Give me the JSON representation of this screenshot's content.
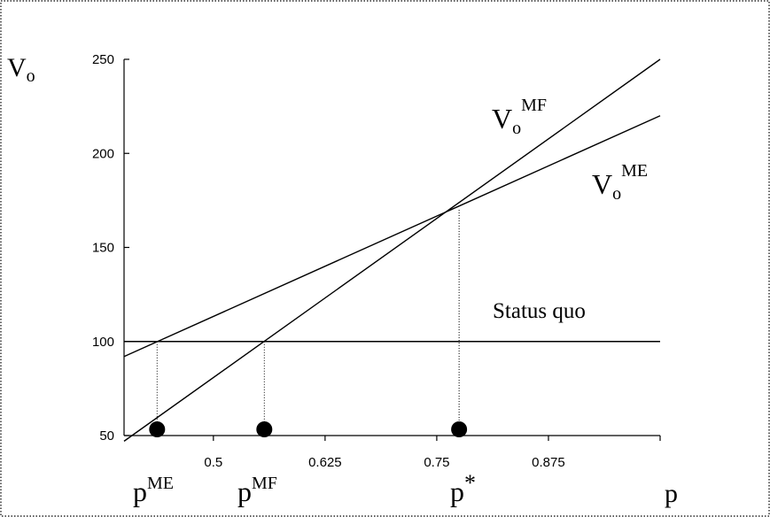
{
  "chart_data": {
    "type": "line",
    "xlabel": "p",
    "ylabel": "V",
    "ylabel_sub": "o",
    "xlim": [
      0.4,
      1.0
    ],
    "ylim": [
      50,
      250
    ],
    "x_ticks": [
      0.5,
      0.625,
      0.75,
      0.875,
      1.0
    ],
    "x_tick_labels": [
      "0.5",
      "0.625",
      "0.75",
      "0.875",
      ""
    ],
    "y_ticks": [
      50,
      100,
      150,
      200,
      250
    ],
    "y_tick_labels": [
      "50",
      "100",
      "150",
      "200",
      "250"
    ],
    "series": [
      {
        "name": "MF",
        "label_main": "V",
        "label_sub": "o",
        "label_sup": "MF",
        "x": [
          0.4,
          1.0
        ],
        "y": [
          47,
          250
        ]
      },
      {
        "name": "ME",
        "label_main": "V",
        "label_sub": "o",
        "label_sup": "ME",
        "x": [
          0.4,
          1.0
        ],
        "y": [
          92,
          220
        ]
      },
      {
        "name": "Status quo",
        "label_main": "Status quo",
        "x": [
          0.4,
          1.0
        ],
        "y": [
          100,
          100
        ]
      }
    ],
    "markers": [
      {
        "name": "ME",
        "x": 0.437,
        "y": 100,
        "label_main": "p",
        "label_sup": "ME"
      },
      {
        "name": "MF",
        "x": 0.557,
        "y": 100,
        "label_main": "p",
        "label_sup": "MF"
      },
      {
        "name": "star",
        "x": 0.775,
        "y": 170,
        "label_main": "p",
        "label_sup": "*"
      }
    ],
    "grid": false,
    "legend": "none"
  }
}
